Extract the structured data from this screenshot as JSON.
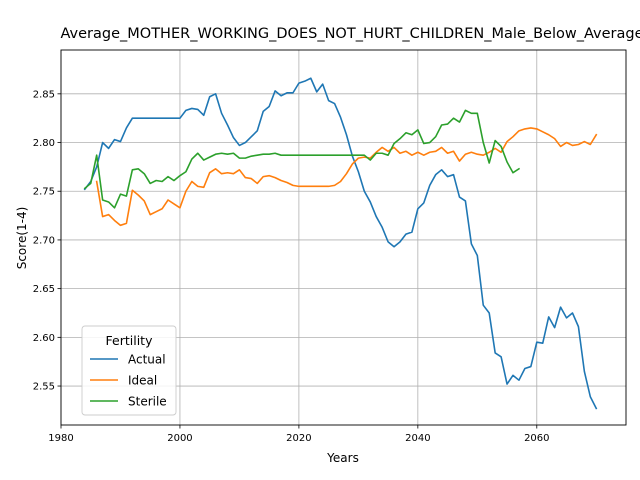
{
  "chart_data": {
    "type": "line",
    "title": "Average_MOTHER_WORKING_DOES_NOT_HURT_CHILDREN_Male_Below_Average",
    "xlabel": "Years",
    "ylabel": "Score(1-4)",
    "xlim": [
      1980,
      2075
    ],
    "ylim": [
      2.51,
      2.895
    ],
    "xticks": [
      1980,
      2000,
      2020,
      2040,
      2060
    ],
    "yticks": [
      2.55,
      2.6,
      2.65,
      2.7,
      2.75,
      2.8,
      2.85
    ],
    "grid": true,
    "legend": {
      "title": "Fertility",
      "position": "lower-left"
    },
    "series": [
      {
        "name": "Actual",
        "color": "#1f77b4",
        "points": [
          [
            1984,
            2.752
          ],
          [
            1985,
            2.76
          ],
          [
            1986,
            2.775
          ],
          [
            1987,
            2.8
          ],
          [
            1988,
            2.794
          ],
          [
            1989,
            2.803
          ],
          [
            1990,
            2.801
          ],
          [
            1991,
            2.815
          ],
          [
            1992,
            2.825
          ],
          [
            1993,
            2.825
          ],
          [
            1994,
            2.825
          ],
          [
            1995,
            2.825
          ],
          [
            1996,
            2.825
          ],
          [
            1997,
            2.825
          ],
          [
            1998,
            2.825
          ],
          [
            1999,
            2.825
          ],
          [
            2000,
            2.825
          ],
          [
            2001,
            2.833
          ],
          [
            2002,
            2.835
          ],
          [
            2003,
            2.834
          ],
          [
            2004,
            2.828
          ],
          [
            2005,
            2.847
          ],
          [
            2006,
            2.85
          ],
          [
            2007,
            2.83
          ],
          [
            2008,
            2.818
          ],
          [
            2009,
            2.805
          ],
          [
            2010,
            2.797
          ],
          [
            2011,
            2.8
          ],
          [
            2012,
            2.806
          ],
          [
            2013,
            2.812
          ],
          [
            2014,
            2.832
          ],
          [
            2015,
            2.837
          ],
          [
            2016,
            2.853
          ],
          [
            2017,
            2.848
          ],
          [
            2018,
            2.851
          ],
          [
            2019,
            2.851
          ],
          [
            2020,
            2.861
          ],
          [
            2021,
            2.863
          ],
          [
            2022,
            2.866
          ],
          [
            2023,
            2.852
          ],
          [
            2024,
            2.86
          ],
          [
            2025,
            2.843
          ],
          [
            2026,
            2.84
          ],
          [
            2027,
            2.826
          ],
          [
            2028,
            2.808
          ],
          [
            2029,
            2.786
          ],
          [
            2030,
            2.77
          ],
          [
            2031,
            2.75
          ],
          [
            2032,
            2.739
          ],
          [
            2033,
            2.724
          ],
          [
            2034,
            2.713
          ],
          [
            2035,
            2.698
          ],
          [
            2036,
            2.693
          ],
          [
            2037,
            2.698
          ],
          [
            2038,
            2.706
          ],
          [
            2039,
            2.708
          ],
          [
            2040,
            2.732
          ],
          [
            2041,
            2.738
          ],
          [
            2042,
            2.756
          ],
          [
            2043,
            2.767
          ],
          [
            2044,
            2.772
          ],
          [
            2045,
            2.765
          ],
          [
            2046,
            2.767
          ],
          [
            2047,
            2.744
          ],
          [
            2048,
            2.74
          ],
          [
            2049,
            2.696
          ],
          [
            2050,
            2.684
          ],
          [
            2051,
            2.633
          ],
          [
            2052,
            2.625
          ],
          [
            2053,
            2.584
          ],
          [
            2054,
            2.58
          ],
          [
            2055,
            2.552
          ],
          [
            2056,
            2.561
          ],
          [
            2057,
            2.556
          ],
          [
            2058,
            2.568
          ],
          [
            2059,
            2.57
          ],
          [
            2060,
            2.595
          ],
          [
            2061,
            2.594
          ],
          [
            2062,
            2.621
          ],
          [
            2063,
            2.61
          ],
          [
            2064,
            2.631
          ],
          [
            2065,
            2.62
          ],
          [
            2066,
            2.625
          ],
          [
            2067,
            2.611
          ],
          [
            2068,
            2.565
          ],
          [
            2069,
            2.539
          ],
          [
            2070,
            2.527
          ]
        ]
      },
      {
        "name": "Ideal",
        "color": "#ff7f0e",
        "points": [
          [
            1986,
            2.76
          ],
          [
            1987,
            2.724
          ],
          [
            1988,
            2.726
          ],
          [
            1989,
            2.72
          ],
          [
            1990,
            2.715
          ],
          [
            1991,
            2.717
          ],
          [
            1992,
            2.751
          ],
          [
            1993,
            2.746
          ],
          [
            1994,
            2.74
          ],
          [
            1995,
            2.726
          ],
          [
            1996,
            2.729
          ],
          [
            1997,
            2.732
          ],
          [
            1998,
            2.741
          ],
          [
            1999,
            2.737
          ],
          [
            2000,
            2.733
          ],
          [
            2001,
            2.75
          ],
          [
            2002,
            2.76
          ],
          [
            2003,
            2.755
          ],
          [
            2004,
            2.754
          ],
          [
            2005,
            2.769
          ],
          [
            2006,
            2.773
          ],
          [
            2007,
            2.768
          ],
          [
            2008,
            2.769
          ],
          [
            2009,
            2.768
          ],
          [
            2010,
            2.772
          ],
          [
            2011,
            2.764
          ],
          [
            2012,
            2.763
          ],
          [
            2013,
            2.758
          ],
          [
            2014,
            2.765
          ],
          [
            2015,
            2.766
          ],
          [
            2016,
            2.764
          ],
          [
            2017,
            2.761
          ],
          [
            2018,
            2.759
          ],
          [
            2019,
            2.756
          ],
          [
            2020,
            2.755
          ],
          [
            2021,
            2.755
          ],
          [
            2022,
            2.755
          ],
          [
            2023,
            2.755
          ],
          [
            2024,
            2.755
          ],
          [
            2025,
            2.755
          ],
          [
            2026,
            2.756
          ],
          [
            2027,
            2.76
          ],
          [
            2028,
            2.768
          ],
          [
            2029,
            2.778
          ],
          [
            2030,
            2.784
          ],
          [
            2031,
            2.785
          ],
          [
            2032,
            2.784
          ],
          [
            2033,
            2.79
          ],
          [
            2034,
            2.795
          ],
          [
            2035,
            2.791
          ],
          [
            2036,
            2.795
          ],
          [
            2037,
            2.789
          ],
          [
            2038,
            2.791
          ],
          [
            2039,
            2.787
          ],
          [
            2040,
            2.79
          ],
          [
            2041,
            2.787
          ],
          [
            2042,
            2.79
          ],
          [
            2043,
            2.791
          ],
          [
            2044,
            2.795
          ],
          [
            2045,
            2.789
          ],
          [
            2046,
            2.791
          ],
          [
            2047,
            2.781
          ],
          [
            2048,
            2.788
          ],
          [
            2049,
            2.79
          ],
          [
            2050,
            2.788
          ],
          [
            2051,
            2.787
          ],
          [
            2052,
            2.79
          ],
          [
            2053,
            2.794
          ],
          [
            2054,
            2.79
          ],
          [
            2055,
            2.801
          ],
          [
            2056,
            2.806
          ],
          [
            2057,
            2.812
          ],
          [
            2058,
            2.814
          ],
          [
            2059,
            2.815
          ],
          [
            2060,
            2.814
          ],
          [
            2061,
            2.811
          ],
          [
            2062,
            2.808
          ],
          [
            2063,
            2.804
          ],
          [
            2064,
            2.796
          ],
          [
            2065,
            2.8
          ],
          [
            2066,
            2.797
          ],
          [
            2067,
            2.798
          ],
          [
            2068,
            2.801
          ],
          [
            2069,
            2.798
          ],
          [
            2070,
            2.808
          ]
        ]
      },
      {
        "name": "Sterile",
        "color": "#2ca02c",
        "points": [
          [
            1984,
            2.753
          ],
          [
            1985,
            2.758
          ],
          [
            1986,
            2.787
          ],
          [
            1987,
            2.741
          ],
          [
            1988,
            2.739
          ],
          [
            1989,
            2.733
          ],
          [
            1990,
            2.747
          ],
          [
            1991,
            2.745
          ],
          [
            1992,
            2.772
          ],
          [
            1993,
            2.773
          ],
          [
            1994,
            2.768
          ],
          [
            1995,
            2.758
          ],
          [
            1996,
            2.761
          ],
          [
            1997,
            2.76
          ],
          [
            1998,
            2.765
          ],
          [
            1999,
            2.761
          ],
          [
            2000,
            2.766
          ],
          [
            2001,
            2.77
          ],
          [
            2002,
            2.783
          ],
          [
            2003,
            2.789
          ],
          [
            2004,
            2.782
          ],
          [
            2005,
            2.785
          ],
          [
            2006,
            2.788
          ],
          [
            2007,
            2.789
          ],
          [
            2008,
            2.788
          ],
          [
            2009,
            2.789
          ],
          [
            2010,
            2.784
          ],
          [
            2011,
            2.784
          ],
          [
            2012,
            2.786
          ],
          [
            2013,
            2.787
          ],
          [
            2014,
            2.788
          ],
          [
            2015,
            2.788
          ],
          [
            2016,
            2.789
          ],
          [
            2017,
            2.787
          ],
          [
            2018,
            2.787
          ],
          [
            2019,
            2.787
          ],
          [
            2020,
            2.787
          ],
          [
            2021,
            2.787
          ],
          [
            2022,
            2.787
          ],
          [
            2023,
            2.787
          ],
          [
            2024,
            2.787
          ],
          [
            2025,
            2.787
          ],
          [
            2026,
            2.787
          ],
          [
            2027,
            2.787
          ],
          [
            2028,
            2.787
          ],
          [
            2029,
            2.787
          ],
          [
            2030,
            2.787
          ],
          [
            2031,
            2.787
          ],
          [
            2032,
            2.782
          ],
          [
            2033,
            2.789
          ],
          [
            2034,
            2.789
          ],
          [
            2035,
            2.787
          ],
          [
            2036,
            2.799
          ],
          [
            2037,
            2.804
          ],
          [
            2038,
            2.81
          ],
          [
            2039,
            2.808
          ],
          [
            2040,
            2.813
          ],
          [
            2041,
            2.799
          ],
          [
            2042,
            2.8
          ],
          [
            2043,
            2.806
          ],
          [
            2044,
            2.818
          ],
          [
            2045,
            2.819
          ],
          [
            2046,
            2.825
          ],
          [
            2047,
            2.821
          ],
          [
            2048,
            2.833
          ],
          [
            2049,
            2.83
          ],
          [
            2050,
            2.83
          ],
          [
            2051,
            2.8
          ],
          [
            2052,
            2.779
          ],
          [
            2053,
            2.802
          ],
          [
            2054,
            2.796
          ],
          [
            2055,
            2.78
          ],
          [
            2056,
            2.769
          ],
          [
            2057,
            2.773
          ]
        ]
      }
    ]
  }
}
